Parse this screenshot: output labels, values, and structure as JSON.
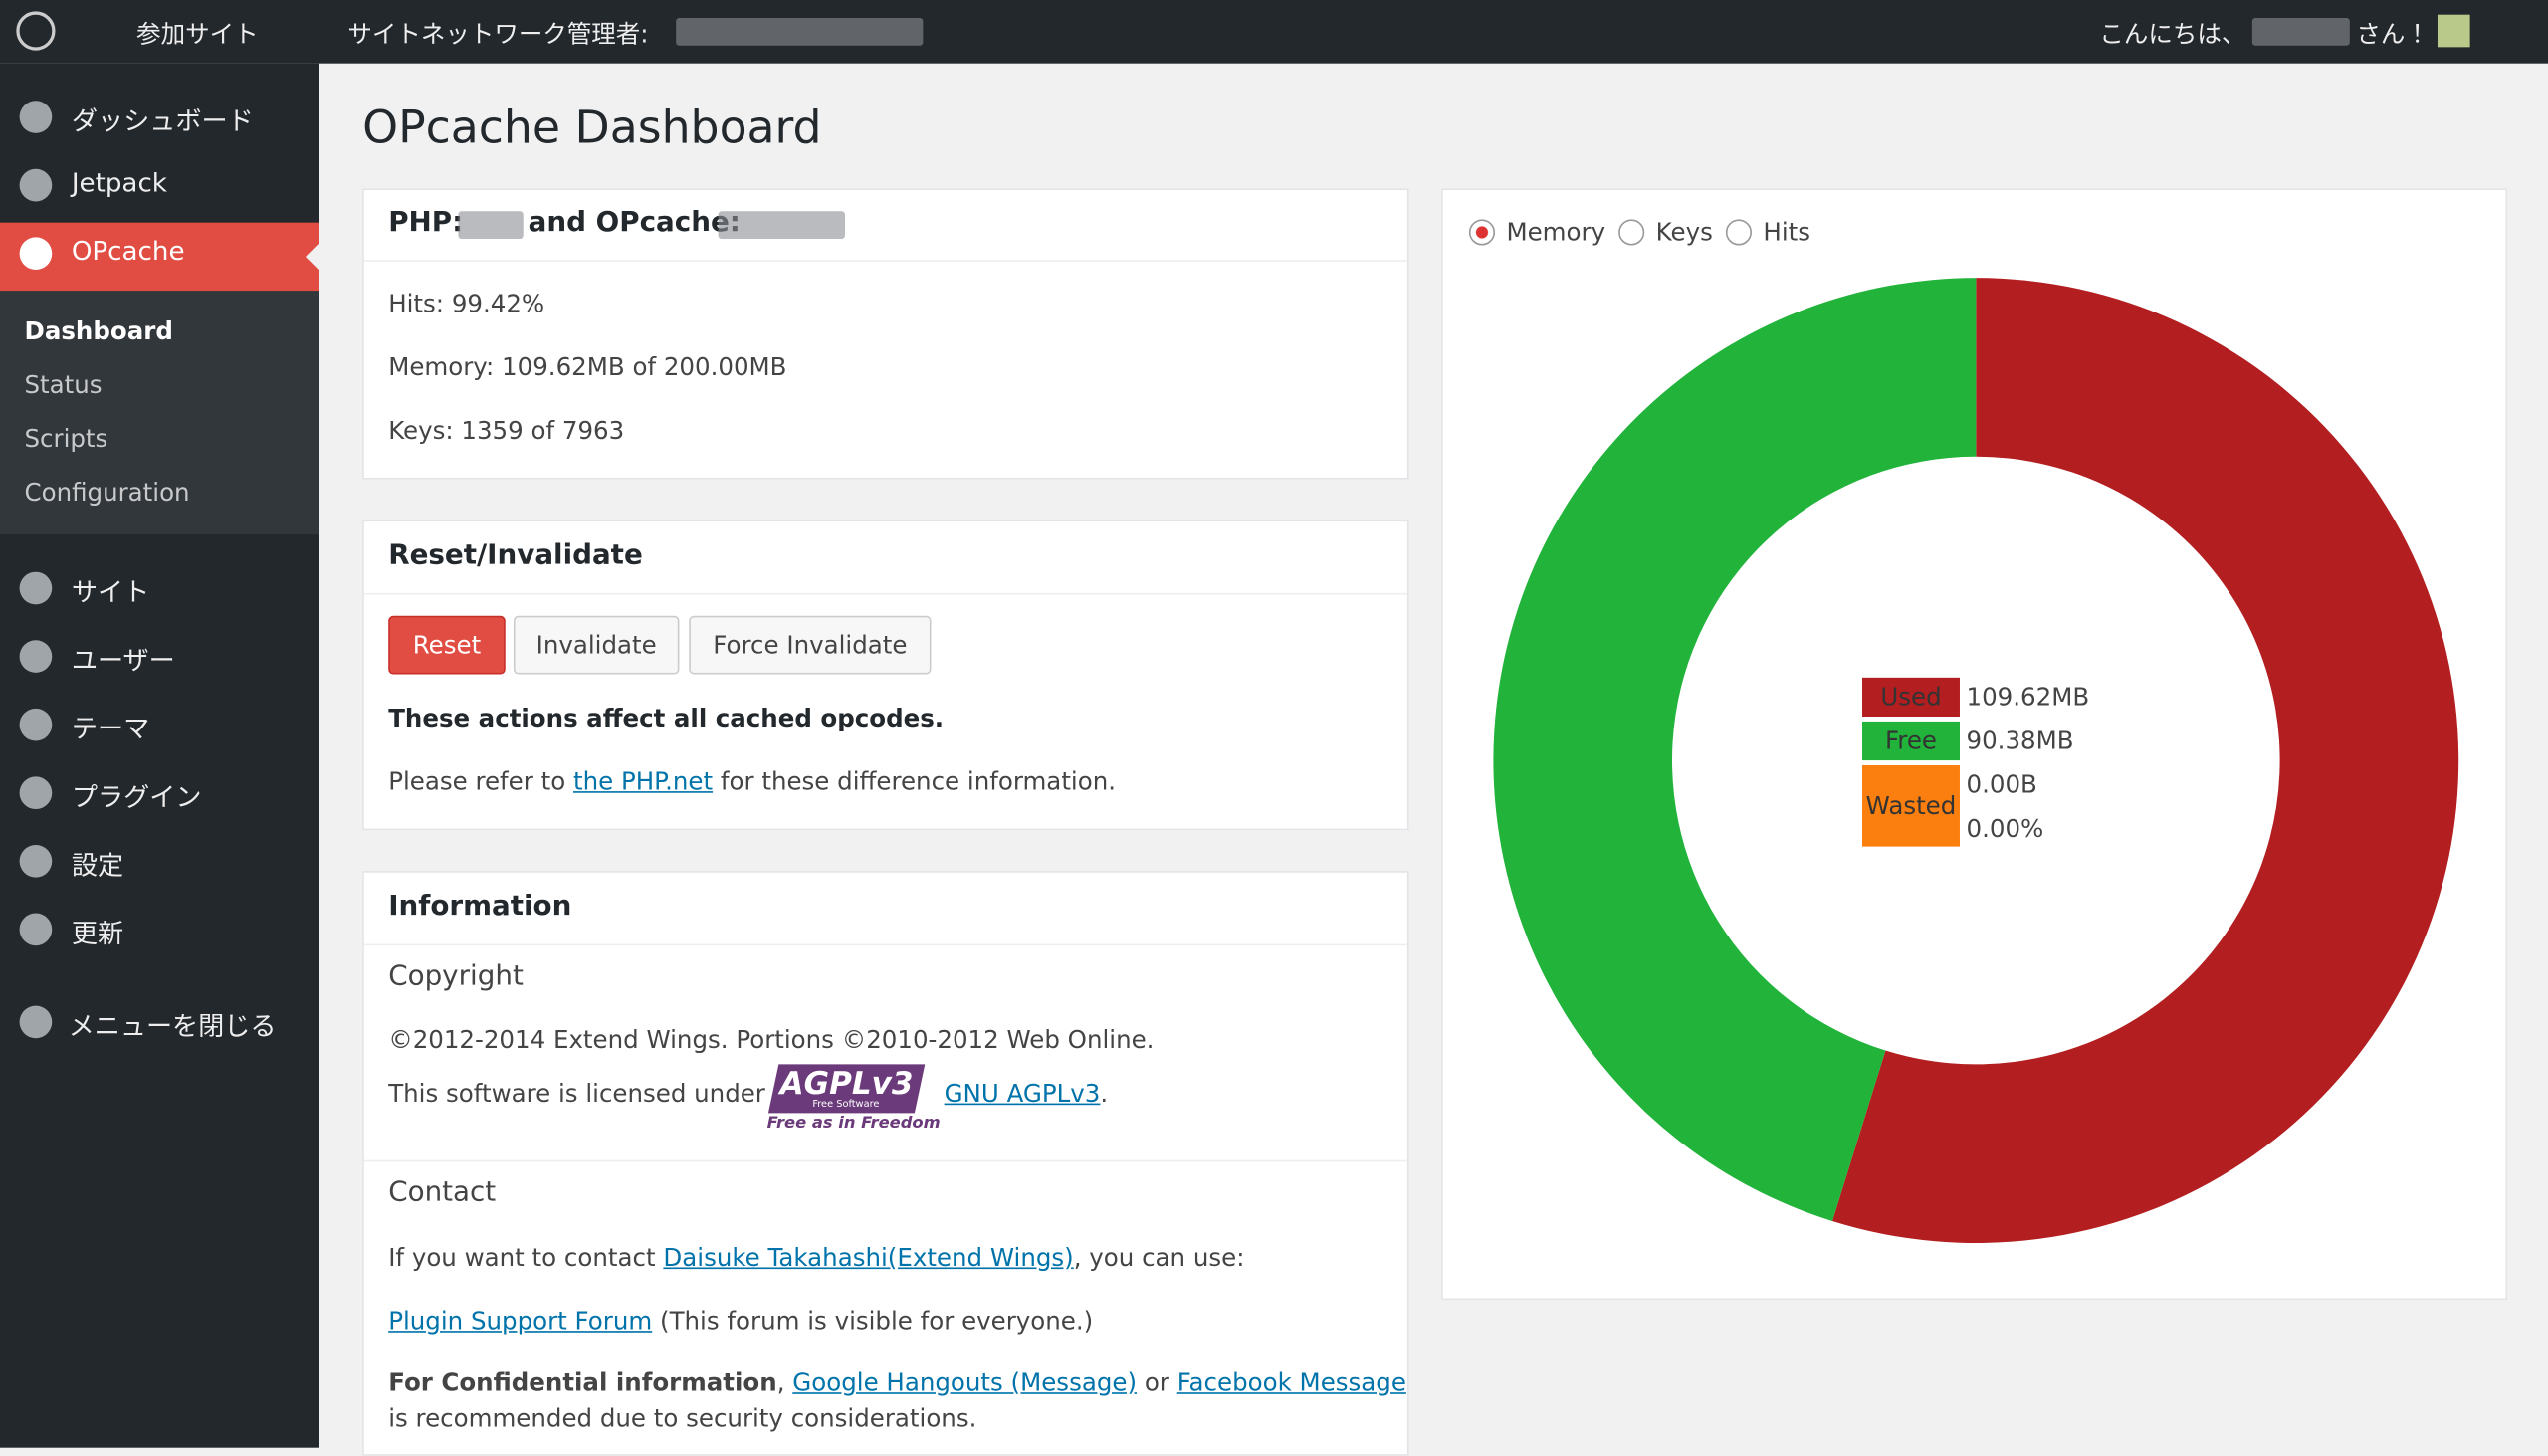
{
  "admin_bar": {
    "site": "参加サイト",
    "network": "サイトネットワーク管理者:",
    "greeting": "こんにちは、",
    "greeting_suffix": "さん！"
  },
  "sidebar": {
    "menu": [
      "ダッシュボード",
      "Jetpack",
      "OPcache"
    ],
    "submenu": [
      "Dashboard",
      "Status",
      "Scripts",
      "Configuration"
    ],
    "menu2": [
      "サイト",
      "ユーザー",
      "テーマ",
      "プラグイン",
      "設定",
      "更新"
    ],
    "collapse": "メニューを閉じる"
  },
  "page_title": "OPcache Dashboard",
  "versions": {
    "php": "PHP:",
    "opcache": "and OPcache:"
  },
  "stats": [
    "Hits: 99.42%",
    "Memory: 109.62MB of 200.00MB",
    "Keys: 1359 of 7963"
  ],
  "reset": {
    "title": "Reset/Invalidate",
    "buttons": [
      "Reset",
      "Invalidate",
      "Force Invalidate"
    ],
    "note": "These actions affect all cached opcodes.",
    "refer_before": "Please refer to",
    "refer_link": "the PHP.net",
    "refer_after": "for these difference information."
  },
  "information": {
    "title": "Information",
    "copyright_heading": "Copyright",
    "copyright": "©2012-2014 Extend Wings. Portions ©2010-2012 Web Online.",
    "license_before": "This software is licensed under",
    "logo": {
      "main": "AGPLv3",
      "small": "Free Software",
      "tagline": "Free as in Freedom"
    },
    "license_link": "GNU AGPLv3",
    "contact_heading": "Contact",
    "contact_before": "If you want to contact",
    "contact_link": "Daisuke Takahashi(Extend Wings)",
    "contact_after": ", you can use:",
    "forum_link": "Plugin Support Forum",
    "forum_after": "(This forum is visible for everyone.)",
    "confidential": "For Confidential information",
    "hangouts_link": "Google Hangouts (Message)",
    "or": "or",
    "facebook_link": "Facebook Message",
    "recommend": "is recommended due to security considerations."
  },
  "chart": {
    "type": "donut",
    "options": [
      "Memory",
      "Keys",
      "Hits"
    ],
    "selected": 0,
    "categories": [
      "Used",
      "Free",
      "Wasted"
    ],
    "colors": [
      "#b31e20",
      "#21b33a",
      "#fb7f0e"
    ],
    "values": [
      109.62,
      90.38,
      0
    ],
    "value_labels": [
      "109.62MB",
      "90.38MB",
      "0.00B"
    ],
    "wasted_percent": "0.00%"
  }
}
